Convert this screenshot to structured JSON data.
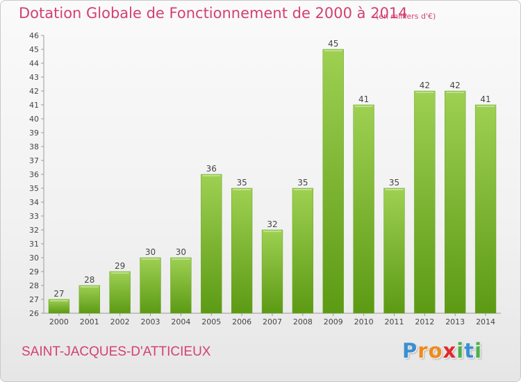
{
  "header": {
    "title": "Dotation Globale de Fonctionnement de 2000 à 2014",
    "unit": "(en milliers d'€)"
  },
  "footer": {
    "commune": "SAINT-JACQUES-D'ATTICIEUX",
    "logo_letters": [
      "P",
      "r",
      "o",
      "x",
      "i",
      "t",
      "i"
    ]
  },
  "colors": {
    "accent": "#d4406e",
    "bar_top": "#9ed052",
    "bar_bottom": "#5c9a14",
    "logo": [
      "#3a8fd0",
      "#f08a1c",
      "#f08a1c",
      "#e2282c",
      "#4ab04a",
      "#3a8fd0",
      "#4ab04a"
    ]
  },
  "chart_data": {
    "type": "bar",
    "title": "Dotation Globale de Fonctionnement de 2000 à 2014",
    "xlabel": "",
    "ylabel": "",
    "categories": [
      "2000",
      "2001",
      "2002",
      "2003",
      "2004",
      "2005",
      "2006",
      "2007",
      "2008",
      "2009",
      "2010",
      "2011",
      "2012",
      "2013",
      "2014"
    ],
    "values": [
      27,
      28,
      29,
      30,
      30,
      36,
      35,
      32,
      35,
      45,
      41,
      35,
      42,
      42,
      41
    ],
    "ylim": [
      26,
      46
    ],
    "yticks": [
      26,
      27,
      28,
      29,
      30,
      31,
      32,
      33,
      34,
      35,
      36,
      37,
      38,
      39,
      40,
      41,
      42,
      43,
      44,
      45,
      46
    ],
    "grid": false,
    "data_labels": true
  }
}
